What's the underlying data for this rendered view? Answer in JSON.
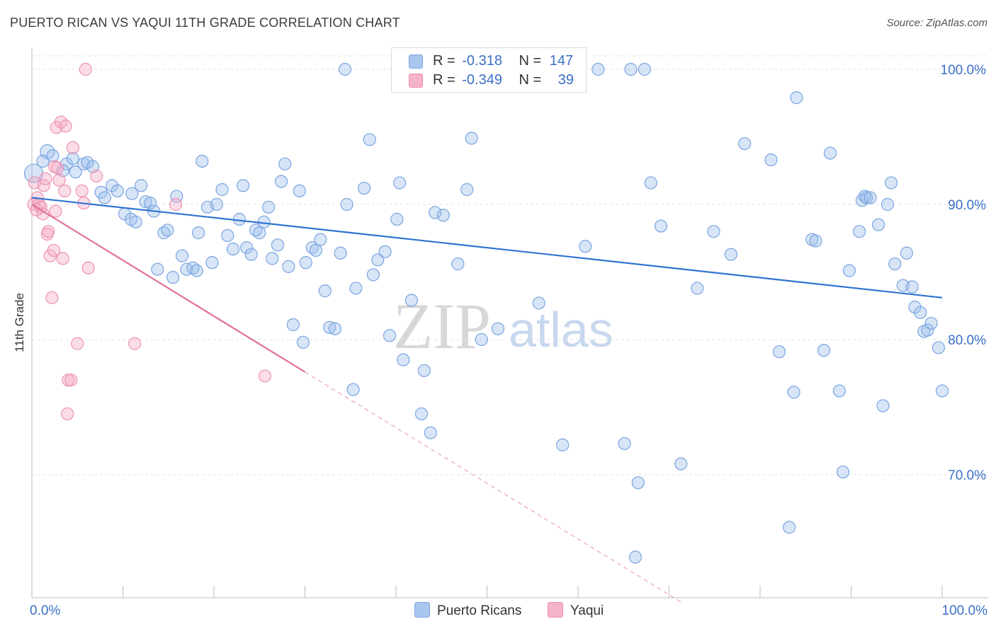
{
  "title": "PUERTO RICAN VS YAQUI 11TH GRADE CORRELATION CHART",
  "source": "Source: ZipAtlas.com",
  "watermark": {
    "zip": "ZIP",
    "atlas": "atlas"
  },
  "legend_top": [
    {
      "r_label": "R =",
      "r_value": "-0.318",
      "n_label": "N =",
      "n_value": "147",
      "color": "#a9c6ef"
    },
    {
      "r_label": "R =",
      "r_value": "-0.349",
      "n_label": "N =",
      "n_value": "39",
      "color": "#f5b3c8"
    }
  ],
  "legend_bottom": [
    {
      "label": "Puerto Ricans",
      "color": "#a9c6ef"
    },
    {
      "label": "Yaqui",
      "color": "#f5b3c8"
    }
  ],
  "chart_data": {
    "type": "scatter",
    "title": "PUERTO RICAN VS YAQUI 11TH GRADE CORRELATION CHART",
    "xlabel": "",
    "ylabel": "11th Grade",
    "xlim": [
      0,
      100
    ],
    "ylim": [
      60.5,
      102
    ],
    "x_tick_labels": [
      "0.0%",
      "100.0%"
    ],
    "y_ticks": [
      {
        "value": 100,
        "label": "100.0%"
      },
      {
        "value": 90,
        "label": "90.0%"
      },
      {
        "value": 80,
        "label": "80.0%"
      },
      {
        "value": 70,
        "label": "70.0%"
      }
    ],
    "grid": true,
    "legend_placement": "top-center",
    "series": [
      {
        "name": "Puerto Ricans",
        "color": "#5b93e0",
        "trend": {
          "x0": 0,
          "y0": 90.5,
          "x1": 100,
          "y1": 83.1
        },
        "points": [
          [
            0.2,
            92.3
          ],
          [
            1.7,
            93.9
          ],
          [
            1.2,
            93.2
          ],
          [
            2.3,
            93.6
          ],
          [
            3.8,
            93.0
          ],
          [
            4.5,
            93.4
          ],
          [
            3.4,
            92.5
          ],
          [
            4.8,
            92.4
          ],
          [
            5.7,
            93.0
          ],
          [
            6.1,
            93.1
          ],
          [
            6.7,
            92.8
          ],
          [
            7.6,
            90.9
          ],
          [
            8.0,
            90.5
          ],
          [
            8.8,
            91.4
          ],
          [
            9.4,
            91.0
          ],
          [
            10.2,
            89.3
          ],
          [
            10.9,
            88.9
          ],
          [
            11.4,
            88.7
          ],
          [
            11.0,
            90.8
          ],
          [
            12.0,
            91.4
          ],
          [
            12.5,
            90.2
          ],
          [
            13.0,
            90.1
          ],
          [
            13.4,
            89.5
          ],
          [
            14.5,
            87.9
          ],
          [
            14.9,
            88.1
          ],
          [
            13.8,
            85.2
          ],
          [
            15.5,
            84.6
          ],
          [
            16.5,
            86.2
          ],
          [
            17.0,
            85.2
          ],
          [
            17.7,
            85.3
          ],
          [
            18.1,
            85.1
          ],
          [
            15.9,
            90.6
          ],
          [
            18.3,
            87.9
          ],
          [
            18.7,
            93.2
          ],
          [
            19.3,
            89.8
          ],
          [
            20.3,
            90.0
          ],
          [
            19.8,
            85.7
          ],
          [
            20.9,
            91.1
          ],
          [
            21.5,
            87.7
          ],
          [
            22.1,
            86.7
          ],
          [
            22.8,
            88.9
          ],
          [
            23.2,
            91.4
          ],
          [
            23.6,
            86.8
          ],
          [
            24.1,
            86.3
          ],
          [
            24.6,
            88.1
          ],
          [
            25.0,
            87.9
          ],
          [
            25.5,
            88.7
          ],
          [
            26.0,
            89.8
          ],
          [
            26.4,
            86.0
          ],
          [
            27.0,
            87.0
          ],
          [
            27.4,
            91.7
          ],
          [
            27.8,
            93.0
          ],
          [
            28.2,
            85.4
          ],
          [
            28.7,
            81.1
          ],
          [
            29.4,
            91.0
          ],
          [
            29.8,
            79.8
          ],
          [
            30.1,
            85.7
          ],
          [
            30.8,
            86.8
          ],
          [
            31.2,
            86.6
          ],
          [
            31.7,
            87.4
          ],
          [
            32.2,
            83.6
          ],
          [
            32.7,
            80.9
          ],
          [
            33.3,
            80.8
          ],
          [
            33.9,
            86.4
          ],
          [
            34.4,
            100.0
          ],
          [
            34.6,
            90.0
          ],
          [
            35.3,
            76.3
          ],
          [
            35.6,
            83.8
          ],
          [
            36.5,
            91.2
          ],
          [
            37.1,
            94.8
          ],
          [
            37.5,
            84.8
          ],
          [
            38.0,
            85.9
          ],
          [
            38.8,
            86.5
          ],
          [
            39.3,
            80.3
          ],
          [
            40.1,
            88.9
          ],
          [
            40.4,
            91.6
          ],
          [
            40.8,
            78.5
          ],
          [
            41.7,
            82.9
          ],
          [
            42.8,
            74.5
          ],
          [
            43.1,
            77.7
          ],
          [
            43.8,
            73.1
          ],
          [
            44.3,
            89.4
          ],
          [
            45.2,
            89.2
          ],
          [
            46.3,
            99.1
          ],
          [
            46.8,
            85.6
          ],
          [
            47.8,
            91.1
          ],
          [
            48.3,
            94.9
          ],
          [
            49.4,
            80.0
          ],
          [
            51.0,
            99.7
          ],
          [
            51.2,
            80.8
          ],
          [
            53.8,
            100.1
          ],
          [
            54.7,
            100.0
          ],
          [
            55.3,
            100.0
          ],
          [
            55.7,
            82.7
          ],
          [
            58.3,
            72.2
          ],
          [
            58.6,
            100.0
          ],
          [
            60.8,
            86.9
          ],
          [
            62.2,
            100.0
          ],
          [
            65.1,
            72.3
          ],
          [
            65.8,
            100.0
          ],
          [
            66.6,
            69.4
          ],
          [
            66.3,
            63.9
          ],
          [
            67.3,
            100.0
          ],
          [
            68.0,
            91.6
          ],
          [
            69.1,
            88.4
          ],
          [
            71.3,
            70.8
          ],
          [
            73.1,
            83.8
          ],
          [
            74.9,
            88.0
          ],
          [
            76.8,
            86.3
          ],
          [
            78.3,
            94.5
          ],
          [
            81.2,
            93.3
          ],
          [
            82.1,
            79.1
          ],
          [
            83.2,
            66.1
          ],
          [
            83.7,
            76.1
          ],
          [
            84.0,
            97.9
          ],
          [
            85.7,
            87.4
          ],
          [
            86.1,
            87.3
          ],
          [
            87.0,
            79.2
          ],
          [
            87.7,
            93.8
          ],
          [
            88.7,
            76.2
          ],
          [
            89.1,
            70.2
          ],
          [
            89.8,
            85.1
          ],
          [
            90.9,
            88.0
          ],
          [
            91.2,
            90.3
          ],
          [
            91.5,
            90.6
          ],
          [
            91.7,
            90.5
          ],
          [
            92.1,
            90.5
          ],
          [
            93.0,
            88.5
          ],
          [
            93.5,
            75.1
          ],
          [
            94.0,
            90.0
          ],
          [
            94.4,
            91.6
          ],
          [
            94.8,
            85.6
          ],
          [
            95.7,
            84.0
          ],
          [
            96.1,
            86.4
          ],
          [
            96.7,
            83.9
          ],
          [
            97.0,
            82.4
          ],
          [
            97.6,
            82.0
          ],
          [
            98.0,
            80.6
          ],
          [
            98.4,
            80.7
          ],
          [
            98.8,
            81.2
          ],
          [
            99.6,
            79.4
          ],
          [
            100.0,
            76.2
          ]
        ]
      },
      {
        "name": "Yaqui",
        "color": "#e8779e",
        "trend": {
          "x0": 0,
          "y0": 90.0,
          "x1": 30,
          "y1": 77.6
        },
        "trend_dashed": {
          "x0": 30,
          "y0": 77.6,
          "x1": 71.5,
          "y1": 60.5
        },
        "points": [
          [
            0.2,
            90.0
          ],
          [
            0.3,
            91.6
          ],
          [
            0.5,
            89.6
          ],
          [
            0.6,
            90.5
          ],
          [
            0.8,
            90.0
          ],
          [
            1.0,
            89.8
          ],
          [
            1.2,
            89.3
          ],
          [
            1.3,
            91.4
          ],
          [
            1.5,
            91.9
          ],
          [
            1.7,
            87.8
          ],
          [
            1.8,
            88.0
          ],
          [
            2.0,
            86.2
          ],
          [
            2.2,
            83.1
          ],
          [
            2.4,
            86.6
          ],
          [
            2.5,
            92.8
          ],
          [
            2.6,
            89.5
          ],
          [
            2.7,
            95.7
          ],
          [
            2.8,
            92.7
          ],
          [
            3.0,
            91.8
          ],
          [
            3.2,
            96.1
          ],
          [
            3.4,
            86.0
          ],
          [
            3.6,
            91.0
          ],
          [
            3.7,
            95.8
          ],
          [
            3.9,
            74.5
          ],
          [
            4.0,
            77.0
          ],
          [
            4.3,
            77.0
          ],
          [
            4.5,
            94.2
          ],
          [
            5.0,
            79.7
          ],
          [
            5.5,
            91.0
          ],
          [
            5.7,
            90.1
          ],
          [
            5.9,
            100.0
          ],
          [
            6.2,
            85.3
          ],
          [
            7.1,
            92.1
          ],
          [
            11.3,
            79.7
          ],
          [
            15.8,
            90.0
          ],
          [
            25.6,
            77.3
          ]
        ]
      }
    ]
  }
}
